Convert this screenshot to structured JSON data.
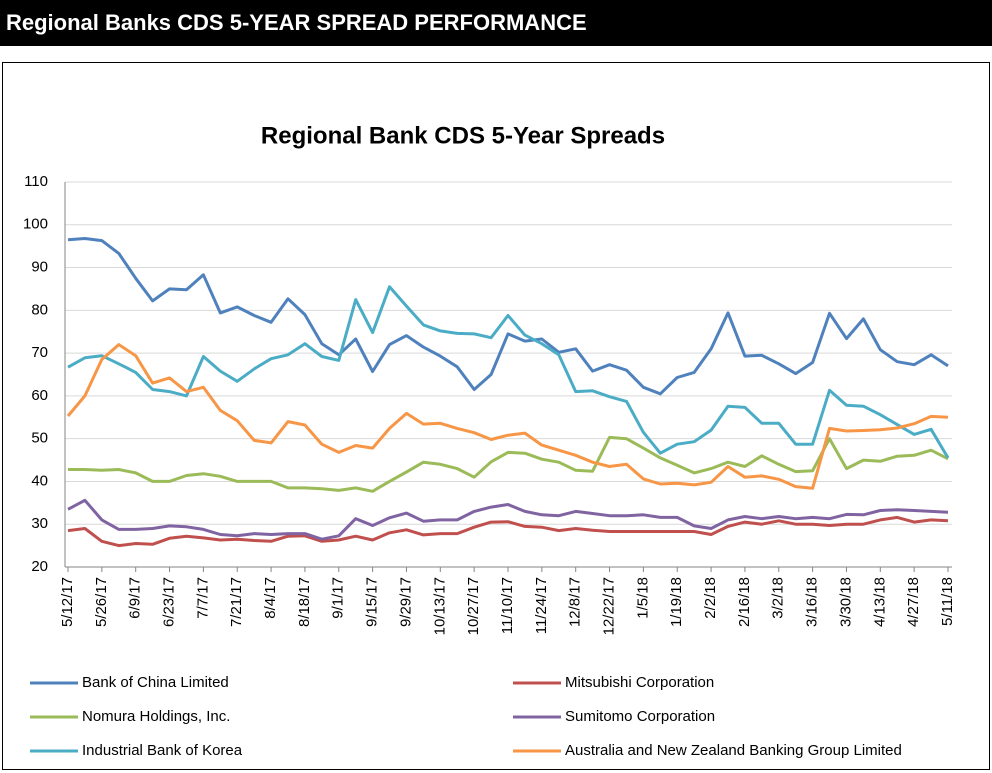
{
  "header": {
    "title": "Regional Banks CDS 5-YEAR SPREAD PERFORMANCE"
  },
  "chart_data": {
    "type": "line",
    "title": "Regional Bank CDS 5-Year Spreads",
    "categories": [
      "5/12/17",
      null,
      "5/26/17",
      null,
      "6/9/17",
      null,
      "6/23/17",
      null,
      "7/7/17",
      null,
      "7/21/17",
      null,
      "8/4/17",
      null,
      "8/18/17",
      null,
      "9/1/17",
      null,
      "9/15/17",
      null,
      "9/29/17",
      null,
      "10/13/17",
      null,
      "10/27/17",
      null,
      "11/10/17",
      null,
      "11/24/17",
      null,
      "12/8/17",
      null,
      "12/22/17",
      null,
      "1/5/18",
      null,
      "1/19/18",
      null,
      "2/2/18",
      null,
      "2/16/18",
      null,
      "3/2/18",
      null,
      "3/16/18",
      null,
      "3/30/18",
      null,
      "4/13/18",
      null,
      "4/27/18",
      null,
      "5/11/18"
    ],
    "series": [
      {
        "name": "Bank of China Limited",
        "color": "#4f81bd",
        "values": [
          96.5,
          96.8,
          96.3,
          93.3,
          87.5,
          82.2,
          85,
          84.8,
          88.3,
          79.4,
          80.8,
          78.8,
          77.2,
          82.7,
          79,
          72.2,
          69.6,
          73.3,
          65.7,
          72,
          74.1,
          71.4,
          69.3,
          66.8,
          61.5,
          65,
          74.5,
          72.8,
          73.3,
          70.2,
          71,
          65.8,
          67.3,
          66,
          62,
          60.5,
          64.3,
          65.5,
          71,
          79.4,
          69.3,
          69.5,
          67.5,
          65.2,
          67.8,
          79.3,
          73.4,
          78,
          70.8,
          68,
          67.3,
          69.6,
          67
        ]
      },
      {
        "name": "Mitsubishi Corporation",
        "color": "#c0504d",
        "values": [
          28.5,
          29,
          26,
          25,
          25.5,
          25.3,
          26.7,
          27.2,
          26.8,
          26.3,
          26.5,
          26.2,
          26,
          27.2,
          27.3,
          26,
          26.3,
          27.2,
          26.3,
          28,
          28.7,
          27.5,
          27.8,
          27.8,
          29.3,
          30.5,
          30.6,
          29.5,
          29.3,
          28.5,
          29,
          28.6,
          28.3,
          28.3,
          28.3,
          28.3,
          28.3,
          28.3,
          27.6,
          29.5,
          30.5,
          30,
          30.8,
          30,
          30,
          29.7,
          30,
          30,
          31,
          31.6,
          30.5,
          31,
          30.8
        ]
      },
      {
        "name": "Nomura Holdings, Inc.",
        "color": "#9bbb59",
        "values": [
          42.8,
          42.8,
          42.6,
          42.8,
          42,
          40,
          40,
          41.4,
          41.8,
          41.2,
          40,
          40,
          40,
          38.5,
          38.5,
          38.3,
          37.9,
          38.5,
          37.7,
          40,
          42.2,
          44.5,
          44,
          43,
          41,
          44.6,
          46.8,
          46.6,
          45.2,
          44.5,
          42.6,
          42.4,
          50.3,
          50,
          47.8,
          45.5,
          43.8,
          42,
          43,
          44.5,
          43.5,
          46,
          44,
          42.3,
          42.5,
          50,
          43,
          45,
          44.7,
          45.9,
          46.1,
          47.3,
          45.3
        ]
      },
      {
        "name": "Sumitomo Corporation",
        "color": "#8064a2",
        "values": [
          33.5,
          35.6,
          31,
          28.8,
          28.8,
          29,
          29.6,
          29.4,
          28.8,
          27.6,
          27.3,
          27.8,
          27.6,
          27.8,
          27.8,
          26.5,
          27.3,
          31.3,
          29.7,
          31.5,
          32.6,
          30.7,
          31,
          31,
          33,
          34,
          34.6,
          33,
          32.2,
          32,
          33,
          32.5,
          32,
          32,
          32.2,
          31.6,
          31.6,
          29.6,
          29,
          31,
          31.8,
          31.3,
          31.8,
          31.3,
          31.6,
          31.3,
          32.3,
          32.2,
          33.2,
          33.4,
          33.2,
          33,
          32.8
        ]
      },
      {
        "name": "Industrial Bank of Korea",
        "color": "#4bacc6",
        "values": [
          66.7,
          68.9,
          69.4,
          67.5,
          65.5,
          61.5,
          61,
          60,
          69.2,
          65.8,
          63.4,
          66.3,
          68.7,
          69.6,
          72.2,
          69.2,
          68.3,
          82.5,
          74.8,
          85.5,
          81,
          76.6,
          75.2,
          74.6,
          74.5,
          73.6,
          78.8,
          74.2,
          72.2,
          69.6,
          61,
          61.2,
          59.8,
          58.7,
          51.5,
          46.6,
          48.7,
          49.3,
          52,
          57.6,
          57.3,
          53.6,
          53.6,
          48.7,
          48.7,
          61.3,
          57.8,
          57.6,
          55.6,
          53.3,
          51,
          52.2,
          45.5
        ]
      },
      {
        "name": "Australia and New Zealand Banking Group Limited",
        "color": "#f79646",
        "values": [
          55.3,
          60,
          68.5,
          72,
          69.4,
          63,
          64.2,
          61,
          62,
          56.6,
          54.2,
          49.6,
          49,
          54,
          53.2,
          48.7,
          46.8,
          48.4,
          47.8,
          52.4,
          55.9,
          53.4,
          53.6,
          52.4,
          51.4,
          49.8,
          50.8,
          51.3,
          48.5,
          47.3,
          46.1,
          44.5,
          43.5,
          44,
          40.6,
          39.4,
          39.6,
          39.2,
          39.8,
          43.5,
          41,
          41.3,
          40.5,
          38.8,
          38.4,
          52.4,
          51.8,
          51.9,
          52.1,
          52.5,
          53.5,
          55.2,
          55
        ]
      }
    ],
    "ylim": [
      20,
      110
    ],
    "yticks": [
      20,
      30,
      40,
      50,
      60,
      70,
      80,
      90,
      100,
      110
    ],
    "grid": true,
    "legend": "bottom"
  }
}
